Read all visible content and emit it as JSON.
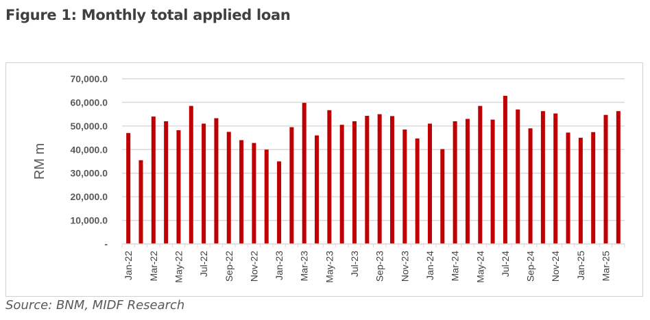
{
  "figure": {
    "title": "Figure 1: Monthly total applied loan",
    "source": "Source: BNM, MIDF Research"
  },
  "chart_data": {
    "type": "bar",
    "ylabel": "RM m",
    "xlabel": "",
    "ylim": [
      0,
      70000
    ],
    "yticks": [
      0,
      10000,
      20000,
      30000,
      40000,
      50000,
      60000,
      70000
    ],
    "ytick_labels": [
      "-",
      "10,000.0",
      "20,000.0",
      "30,000.0",
      "40,000.0",
      "50,000.0",
      "60,000.0",
      "70,000.0"
    ],
    "grid": true,
    "bar_color": "#c00000",
    "categories": [
      "Jan-22",
      "Feb-22",
      "Mar-22",
      "Apr-22",
      "May-22",
      "Jun-22",
      "Jul-22",
      "Aug-22",
      "Sep-22",
      "Oct-22",
      "Nov-22",
      "Dec-22",
      "Jan-23",
      "Feb-23",
      "Mar-23",
      "Apr-23",
      "May-23",
      "Jun-23",
      "Jul-23",
      "Aug-23",
      "Sep-23",
      "Oct-23",
      "Nov-23",
      "Dec-23",
      "Jan-24",
      "Feb-24",
      "Mar-24",
      "Apr-24",
      "May-24",
      "Jun-24",
      "Jul-24",
      "Aug-24",
      "Sep-24",
      "Oct-24",
      "Nov-24",
      "Dec-24",
      "Jan-25",
      "Feb-25",
      "Mar-25",
      "Apr-25"
    ],
    "xtick_labels": [
      "Jan-22",
      "",
      "Mar-22",
      "",
      "May-22",
      "",
      "Jul-22",
      "",
      "Sep-22",
      "",
      "Nov-22",
      "",
      "Jan-23",
      "",
      "Mar-23",
      "",
      "May-23",
      "",
      "Jul-23",
      "",
      "Sep-23",
      "",
      "Nov-23",
      "",
      "Jan-24",
      "",
      "Mar-24",
      "",
      "May-24",
      "",
      "Jul-24",
      "",
      "Sep-24",
      "",
      "Nov-24",
      "",
      "Jan-25",
      "",
      "Mar-25",
      ""
    ],
    "values": [
      47000,
      35500,
      54000,
      52000,
      48200,
      58500,
      51000,
      53300,
      47500,
      44000,
      42800,
      40000,
      35000,
      49500,
      59800,
      46000,
      56700,
      50500,
      52000,
      54300,
      55000,
      54200,
      48500,
      44700,
      51000,
      40200,
      52000,
      53000,
      58500,
      52700,
      62800,
      57000,
      49000,
      56300,
      55300,
      47200,
      45000,
      47400,
      54700,
      56300
    ]
  }
}
